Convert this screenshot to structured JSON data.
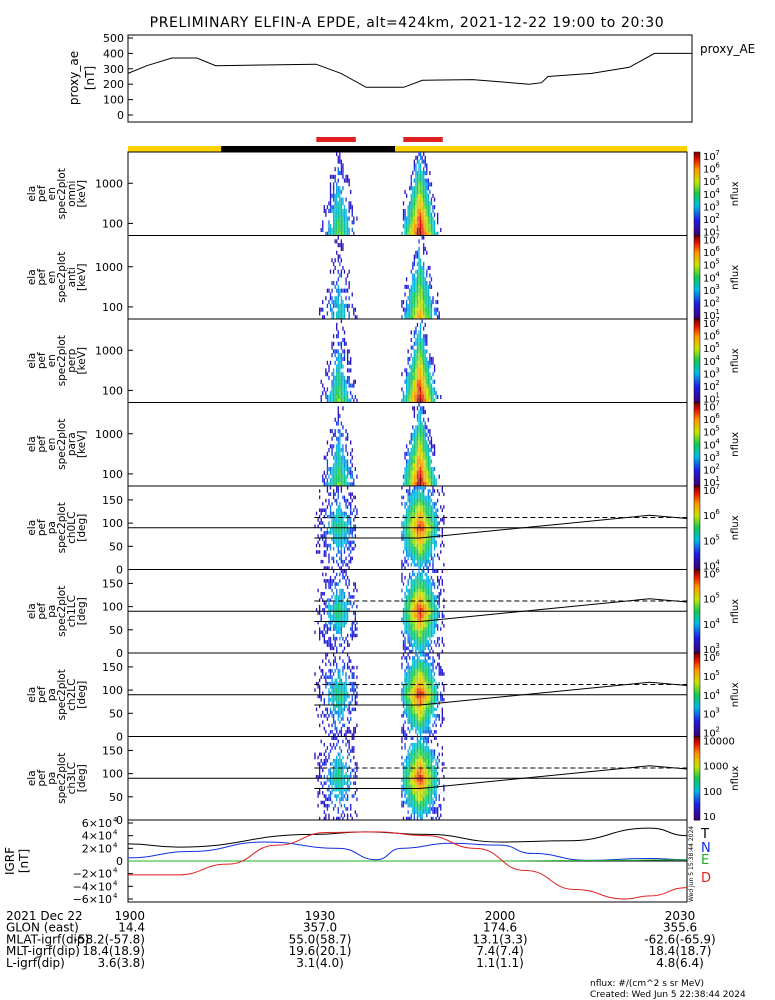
{
  "title": "PRELIMINARY ELFIN-A EPDE, alt=424km, 2021-12-22 19:00 to 20:30",
  "colors": {
    "day": "#ffd200",
    "night": "#000000",
    "science_zone": "#e02020",
    "ref_line": "#000000",
    "B_T": "#000000",
    "B_N": "#1030e0",
    "B_E": "#20b020",
    "B_D": "#e02020"
  },
  "proxy_panel": {
    "ylabel_lines": [
      "proxy_ae",
      "[nT]"
    ],
    "yticks": [
      "500",
      "400",
      "300",
      "200",
      "100",
      "0"
    ],
    "legend": "proxy_AE"
  },
  "spectrogram_panels": [
    {
      "ylabel_lines": [
        "ela",
        "pef",
        "en",
        "spec2plot",
        "omni",
        "[keV]"
      ],
      "yticks": [
        "1000",
        "100"
      ],
      "cbar_ticks": [
        "10",
        "10",
        "10",
        "10",
        "10",
        "10",
        "10"
      ],
      "cbar_exps": [
        "7",
        "6",
        "5",
        "4",
        "3",
        "2",
        "1"
      ],
      "cbar_label": "nflux"
    },
    {
      "ylabel_lines": [
        "ela",
        "pef",
        "en",
        "spec2plot",
        "anti",
        "[keV]"
      ],
      "yticks": [
        "1000",
        "100"
      ],
      "cbar_ticks": [
        "10",
        "10",
        "10",
        "10",
        "10",
        "10",
        "10"
      ],
      "cbar_exps": [
        "7",
        "6",
        "5",
        "4",
        "3",
        "2",
        "1"
      ],
      "cbar_label": "nflux"
    },
    {
      "ylabel_lines": [
        "ela",
        "pef",
        "en",
        "spec2plot",
        "perp",
        "[keV]"
      ],
      "yticks": [
        "1000",
        "100"
      ],
      "cbar_ticks": [
        "10",
        "10",
        "10",
        "10",
        "10",
        "10",
        "10"
      ],
      "cbar_exps": [
        "7",
        "6",
        "5",
        "4",
        "3",
        "2",
        "1"
      ],
      "cbar_label": "nflux"
    },
    {
      "ylabel_lines": [
        "ela",
        "pef",
        "en",
        "spec2plot",
        "para",
        "[keV]"
      ],
      "yticks": [
        "1000",
        "100"
      ],
      "cbar_ticks": [
        "10",
        "10",
        "10",
        "10",
        "10",
        "10",
        "10"
      ],
      "cbar_exps": [
        "7",
        "6",
        "5",
        "4",
        "3",
        "2",
        "1"
      ],
      "cbar_label": "nflux"
    }
  ],
  "pitch_panels": [
    {
      "ylabel_lines": [
        "ela",
        "pef",
        "pa",
        "spec2plot",
        "ch0LC",
        "[deg]"
      ],
      "yticks": [
        "150",
        "100",
        "50",
        "0"
      ],
      "cbar_ticks": [
        "10",
        "10",
        "10",
        "10"
      ],
      "cbar_exps": [
        "7",
        "6",
        "5",
        "4"
      ],
      "cbar_label": "nflux"
    },
    {
      "ylabel_lines": [
        "ela",
        "pef",
        "pa",
        "spec2plot",
        "ch1LC",
        "[deg]"
      ],
      "yticks": [
        "150",
        "100",
        "50",
        "0"
      ],
      "cbar_ticks": [
        "10",
        "10",
        "10",
        "10"
      ],
      "cbar_exps": [
        "6",
        "5",
        "4",
        "3"
      ],
      "cbar_label": "nflux"
    },
    {
      "ylabel_lines": [
        "ela",
        "pef",
        "pa",
        "spec2plot",
        "ch2LC",
        "[deg]"
      ],
      "yticks": [
        "150",
        "100",
        "50",
        "0"
      ],
      "cbar_ticks": [
        "10",
        "10",
        "10",
        "10",
        "10"
      ],
      "cbar_exps": [
        "6",
        "5",
        "4",
        "3",
        "2"
      ],
      "cbar_label": "nflux"
    },
    {
      "ylabel_lines": [
        "ela",
        "pef",
        "pa",
        "spec2plot",
        "ch3LC",
        "[deg]"
      ],
      "yticks": [
        "150",
        "100",
        "50",
        "0"
      ],
      "cbar_ticks": [
        "10000",
        "1000",
        "100",
        "10"
      ],
      "cbar_exps": [
        "",
        "",
        "",
        ""
      ],
      "cbar_label": "nflux"
    }
  ],
  "igrf_panel": {
    "ylabel_lines": [
      "IGRF",
      "[nT]"
    ],
    "yticks": [
      "6×10",
      "4×10",
      "2×10",
      "0",
      "−2×10",
      "−4×10",
      "−6×10"
    ],
    "ytick_exps": [
      "4",
      "4",
      "4",
      "",
      "4",
      "4",
      "4"
    ],
    "legend": [
      "T",
      "N",
      "E",
      "D"
    ],
    "side_note": "Wed Jun  5 15:38:44 2024"
  },
  "footer": {
    "rows": [
      {
        "label": "2021 Dec 22",
        "values": [
          "1900",
          "1930",
          "2000",
          "2030"
        ]
      },
      {
        "label": "GLON (east)",
        "values": [
          "14.4",
          "357.0",
          "174.6",
          "355.6"
        ]
      },
      {
        "label": "MLAT-igrf(dip)",
        "values": [
          "-58.2(-57.8)",
          "55.0(58.7)",
          "13.1(3.3)",
          "-62.6(-65.9)"
        ]
      },
      {
        "label": "MLT-igrf(dip)",
        "values": [
          "18.4(18.9)",
          "19.6(20.1)",
          "7.4(7.4)",
          "18.4(18.7)"
        ]
      },
      {
        "label": "L-igrf(dip)",
        "values": [
          "3.6(3.8)",
          "3.1(4.0)",
          "1.1(1.1)",
          "4.8(6.4)"
        ]
      }
    ],
    "units": "nflux: #/(cm^2 s sr MeV)",
    "created": "Created: Wed Jun  5 22:38:44 2024"
  },
  "chart_data": {
    "type": "spectrogram",
    "time_range": [
      "19:00",
      "20:30"
    ],
    "proxy_ae": {
      "ylim": [
        0,
        500
      ],
      "x": [
        "19:00",
        "19:03",
        "19:07",
        "19:11",
        "19:14",
        "19:30",
        "19:34",
        "19:38",
        "19:44",
        "19:47",
        "19:55",
        "20:04",
        "20:06",
        "20:07",
        "20:14",
        "20:20",
        "20:24",
        "20:30"
      ],
      "values": [
        270,
        320,
        370,
        370,
        320,
        330,
        270,
        180,
        180,
        225,
        230,
        200,
        210,
        250,
        270,
        310,
        400,
        400
      ]
    },
    "orbit_bar": [
      {
        "from": "19:00",
        "to": "19:15",
        "state": "day"
      },
      {
        "from": "19:15",
        "to": "19:43",
        "state": "night"
      },
      {
        "from": "19:43",
        "to": "20:30",
        "state": "day"
      }
    ],
    "science_zones": [
      {
        "from": "19:30",
        "to": "19:37"
      },
      {
        "from": "19:44",
        "to": "19:51"
      }
    ],
    "energy_spectra": {
      "ylim_keV": [
        50,
        6000
      ],
      "log_y": true,
      "bursts": [
        {
          "from": "19:30",
          "to": "19:37",
          "peak_time": "19:34",
          "peak_log_flux": 5.0
        },
        {
          "from": "19:44",
          "to": "19:51",
          "peak_time": "19:47",
          "peak_log_flux": 6.8
        }
      ]
    },
    "pitch_angle_spectra": {
      "ylim_deg": [
        0,
        180
      ],
      "loss_cone_dashed_deg": {
        "x": [
          "19:30",
          "19:47",
          "20:24",
          "20:30"
        ],
        "y": [
          112,
          112,
          112,
          112
        ]
      },
      "antiloss_cone_solid_deg": {
        "x": [
          "19:30",
          "19:47",
          "20:24",
          "20:30"
        ],
        "y": [
          68,
          68,
          117,
          110
        ]
      },
      "reference_line_deg": 90
    },
    "igrf": {
      "ylim": [
        -60000,
        60000
      ],
      "series": [
        {
          "name": "T",
          "x": [
            "19:00",
            "19:08",
            "19:30",
            "19:38",
            "19:48",
            "20:00",
            "20:11",
            "20:24",
            "20:30"
          ],
          "y": [
            27000,
            22000,
            42000,
            46000,
            42000,
            30000,
            32000,
            52000,
            40000
          ]
        },
        {
          "name": "N",
          "x": [
            "19:00",
            "19:10",
            "19:22",
            "19:34",
            "19:40",
            "19:44",
            "19:52",
            "20:00",
            "20:05",
            "20:14",
            "20:24",
            "20:30"
          ],
          "y": [
            5000,
            15000,
            30000,
            20000,
            2000,
            20000,
            28000,
            25000,
            12000,
            1000,
            4000,
            2000
          ]
        },
        {
          "name": "E",
          "x": [
            "19:00",
            "19:30",
            "20:00",
            "20:20",
            "20:30"
          ],
          "y": [
            0,
            0,
            0,
            1000,
            2000
          ]
        },
        {
          "name": "D",
          "x": [
            "19:00",
            "19:08",
            "19:16",
            "19:24",
            "19:32",
            "19:40",
            "19:48",
            "19:56",
            "20:04",
            "20:12",
            "20:20",
            "20:24",
            "20:30"
          ],
          "y": [
            -22000,
            -22000,
            -5000,
            25000,
            45000,
            46000,
            40000,
            20000,
            -15000,
            -45000,
            -60000,
            -55000,
            -42000
          ]
        }
      ]
    }
  }
}
